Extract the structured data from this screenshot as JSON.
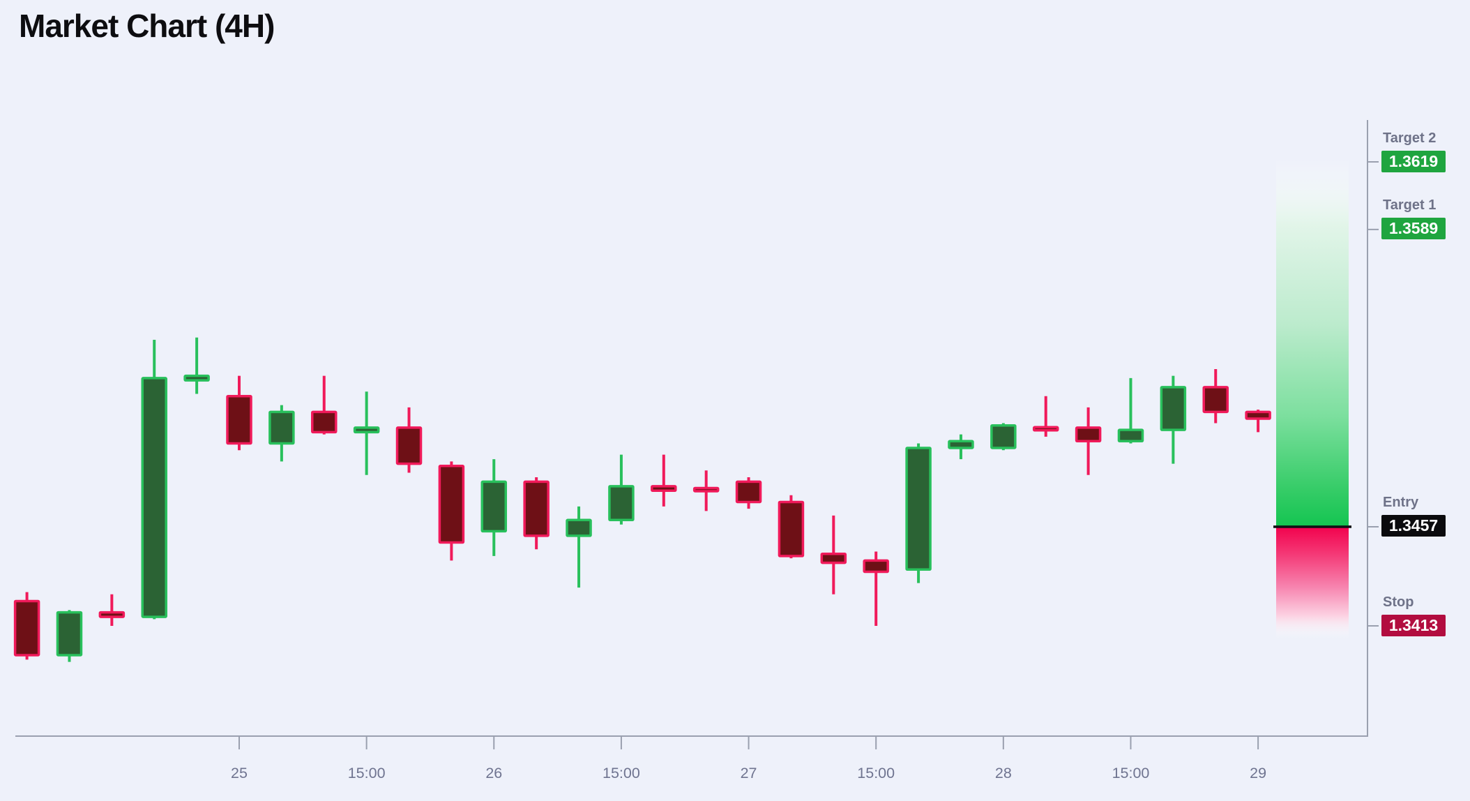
{
  "title": "Market Chart (4H)",
  "colors": {
    "background": "#eef1fa",
    "title_text": "#0d0d10",
    "axis_line": "#9aa0af",
    "x_tick_label": "#6f7490",
    "level_label_text": "#6e7288",
    "badge_text": "#ffffff",
    "bull_border": "#29c05c",
    "bull_fill": "#2b6334",
    "bear_border": "#f01a5a",
    "bear_fill": "#6e1016",
    "entry_line": "#111115",
    "target_badge": "#1fa53f",
    "entry_badge": "#0b0b0d",
    "stop_badge": "#b20d3f",
    "zone_green_stops": [
      "rgba(255,255,255,0)",
      "#e2f5e9",
      "#bcebcd",
      "#7cdf9e",
      "#35cc67",
      "#14c551"
    ],
    "zone_red_stops": [
      "#f2024d",
      "#f43a77",
      "#f787b1",
      "#fcd3e3",
      "rgba(255,255,255,0)"
    ]
  },
  "chart_data": {
    "type": "candlestick",
    "title": "Market Chart (4H)",
    "timeframe": "4H",
    "grid": false,
    "legend": "none",
    "ylim": [
      1.3364,
      1.3638
    ],
    "x_axis_labels": [
      {
        "candle_index": 5,
        "label": "25"
      },
      {
        "candle_index": 8,
        "label": "15:00"
      },
      {
        "candle_index": 11,
        "label": "26"
      },
      {
        "candle_index": 14,
        "label": "15:00"
      },
      {
        "candle_index": 17,
        "label": "27"
      },
      {
        "candle_index": 20,
        "label": "15:00"
      },
      {
        "candle_index": 23,
        "label": "28"
      },
      {
        "candle_index": 26,
        "label": "15:00"
      },
      {
        "candle_index": 29,
        "label": "29"
      }
    ],
    "candles": [
      {
        "o": 1.3424,
        "h": 1.3428,
        "l": 1.3398,
        "c": 1.34
      },
      {
        "o": 1.34,
        "h": 1.342,
        "l": 1.3397,
        "c": 1.3419
      },
      {
        "o": 1.3419,
        "h": 1.3427,
        "l": 1.3413,
        "c": 1.3417
      },
      {
        "o": 1.3417,
        "h": 1.354,
        "l": 1.3416,
        "c": 1.3523
      },
      {
        "o": 1.3522,
        "h": 1.3541,
        "l": 1.3516,
        "c": 1.3524
      },
      {
        "o": 1.3515,
        "h": 1.3524,
        "l": 1.3491,
        "c": 1.3494
      },
      {
        "o": 1.3494,
        "h": 1.3511,
        "l": 1.3486,
        "c": 1.3508
      },
      {
        "o": 1.3508,
        "h": 1.3524,
        "l": 1.3498,
        "c": 1.3499
      },
      {
        "o": 1.3499,
        "h": 1.3517,
        "l": 1.348,
        "c": 1.3501
      },
      {
        "o": 1.3501,
        "h": 1.351,
        "l": 1.3481,
        "c": 1.3485
      },
      {
        "o": 1.3484,
        "h": 1.3486,
        "l": 1.3442,
        "c": 1.345
      },
      {
        "o": 1.3455,
        "h": 1.3487,
        "l": 1.3444,
        "c": 1.3477
      },
      {
        "o": 1.3477,
        "h": 1.3479,
        "l": 1.3447,
        "c": 1.3453
      },
      {
        "o": 1.3453,
        "h": 1.3466,
        "l": 1.343,
        "c": 1.346
      },
      {
        "o": 1.346,
        "h": 1.3489,
        "l": 1.3458,
        "c": 1.3475
      },
      {
        "o": 1.3475,
        "h": 1.3489,
        "l": 1.3466,
        "c": 1.3473
      },
      {
        "o": 1.3474,
        "h": 1.3482,
        "l": 1.3464,
        "c": 1.3473
      },
      {
        "o": 1.3477,
        "h": 1.3479,
        "l": 1.3465,
        "c": 1.3468
      },
      {
        "o": 1.3468,
        "h": 1.3471,
        "l": 1.3443,
        "c": 1.3444
      },
      {
        "o": 1.3445,
        "h": 1.3462,
        "l": 1.3427,
        "c": 1.3441
      },
      {
        "o": 1.3442,
        "h": 1.3446,
        "l": 1.3413,
        "c": 1.3437
      },
      {
        "o": 1.3438,
        "h": 1.3494,
        "l": 1.3432,
        "c": 1.3492
      },
      {
        "o": 1.3492,
        "h": 1.3498,
        "l": 1.3487,
        "c": 1.3495
      },
      {
        "o": 1.3492,
        "h": 1.3503,
        "l": 1.3491,
        "c": 1.3502
      },
      {
        "o": 1.3501,
        "h": 1.3515,
        "l": 1.3497,
        "c": 1.35
      },
      {
        "o": 1.3501,
        "h": 1.351,
        "l": 1.348,
        "c": 1.3495
      },
      {
        "o": 1.3495,
        "h": 1.3523,
        "l": 1.3494,
        "c": 1.35
      },
      {
        "o": 1.35,
        "h": 1.3524,
        "l": 1.3485,
        "c": 1.3519
      },
      {
        "o": 1.3519,
        "h": 1.3527,
        "l": 1.3503,
        "c": 1.3508
      },
      {
        "o": 1.3508,
        "h": 1.3509,
        "l": 1.3499,
        "c": 1.3505
      }
    ],
    "levels": [
      {
        "id": "target2",
        "label": "Target 2",
        "value": 1.3619,
        "value_text": "1.3619",
        "badge_color": "#1fa53f"
      },
      {
        "id": "target1",
        "label": "Target 1",
        "value": 1.3589,
        "value_text": "1.3589",
        "badge_color": "#1fa53f"
      },
      {
        "id": "entry",
        "label": "Entry",
        "value": 1.3457,
        "value_text": "1.3457",
        "badge_color": "#0b0b0d"
      },
      {
        "id": "stop",
        "label": "Stop",
        "value": 1.3413,
        "value_text": "1.3413",
        "badge_color": "#b20d3f"
      }
    ]
  }
}
